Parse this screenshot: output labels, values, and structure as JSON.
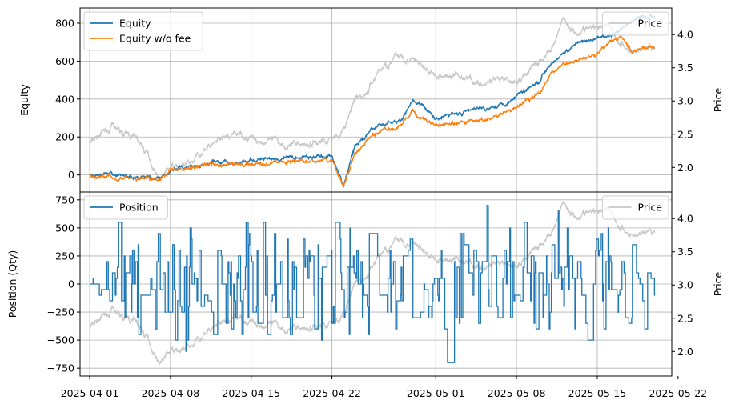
{
  "chart_data": [
    {
      "type": "line",
      "panel": "equity",
      "xlabel": "",
      "ylabel": "Equity",
      "ylabel_right": "Price",
      "ylim": [
        -90,
        880
      ],
      "ylim_right": [
        1.63,
        4.4
      ],
      "yticks": [
        0,
        200,
        400,
        600,
        800
      ],
      "yticks_right": [
        2.0,
        2.5,
        3.0,
        3.5,
        4.0
      ],
      "ytick_labels": [
        "0",
        "200",
        "400",
        "600",
        "800"
      ],
      "ytick_labels_right": [
        "2.0",
        "2.5",
        "3.0",
        "3.5",
        "4.0"
      ],
      "grid": true,
      "legend_left": "upper-left",
      "legend_right": "upper-right",
      "series": [
        {
          "name": "Equity",
          "axis": "left",
          "color": "#1f77b4",
          "x": [
            "2025-04-01",
            "2025-04-03",
            "2025-04-05",
            "2025-04-07",
            "2025-04-08",
            "2025-04-10",
            "2025-04-12",
            "2025-04-14",
            "2025-04-16",
            "2025-04-18",
            "2025-04-20",
            "2025-04-22",
            "2025-04-23",
            "2025-04-24",
            "2025-04-26",
            "2025-04-28",
            "2025-04-29",
            "2025-05-01",
            "2025-05-03",
            "2025-05-05",
            "2025-05-07",
            "2025-05-08",
            "2025-05-10",
            "2025-05-11",
            "2025-05-13",
            "2025-05-15",
            "2025-05-16",
            "2025-05-17",
            "2025-05-18",
            "2025-05-19"
          ],
          "values": [
            0,
            -5,
            -10,
            -15,
            30,
            50,
            70,
            60,
            80,
            90,
            95,
            100,
            -60,
            150,
            260,
            290,
            400,
            300,
            330,
            350,
            380,
            420,
            500,
            600,
            680,
            720,
            730,
            760,
            810,
            840
          ]
        },
        {
          "name": "Equity w/o fee",
          "axis": "left",
          "color": "#ff7f0e",
          "x": [
            "2025-04-01",
            "2025-04-03",
            "2025-04-05",
            "2025-04-07",
            "2025-04-08",
            "2025-04-10",
            "2025-04-12",
            "2025-04-14",
            "2025-04-16",
            "2025-04-18",
            "2025-04-20",
            "2025-04-22",
            "2025-04-23",
            "2025-04-24",
            "2025-04-26",
            "2025-04-28",
            "2025-04-29",
            "2025-05-01",
            "2025-05-03",
            "2025-05-05",
            "2025-05-07",
            "2025-05-08",
            "2025-05-10",
            "2025-05-11",
            "2025-05-13",
            "2025-05-15",
            "2025-05-16",
            "2025-05-17",
            "2025-05-18",
            "2025-05-19"
          ],
          "values": [
            0,
            -10,
            -20,
            -25,
            20,
            40,
            60,
            50,
            65,
            70,
            70,
            75,
            -60,
            110,
            230,
            260,
            330,
            260,
            270,
            290,
            320,
            360,
            430,
            540,
            600,
            650,
            700,
            740,
            640,
            670
          ]
        },
        {
          "name": "Price",
          "axis": "right",
          "color": "#c8c8c8",
          "x": [
            "2025-04-01",
            "2025-04-02",
            "2025-04-03",
            "2025-04-04",
            "2025-04-05",
            "2025-04-06",
            "2025-04-07",
            "2025-04-08",
            "2025-04-09",
            "2025-04-10",
            "2025-04-11",
            "2025-04-12",
            "2025-04-13",
            "2025-04-14",
            "2025-04-16",
            "2025-04-18",
            "2025-04-20",
            "2025-04-21",
            "2025-04-22",
            "2025-04-23",
            "2025-04-24",
            "2025-04-25",
            "2025-04-26",
            "2025-04-28",
            "2025-04-30",
            "2025-05-01",
            "2025-05-03",
            "2025-05-05",
            "2025-05-07",
            "2025-05-08",
            "2025-05-09",
            "2025-05-11",
            "2025-05-12",
            "2025-05-13",
            "2025-05-15",
            "2025-05-16",
            "2025-05-17",
            "2025-05-18",
            "2025-05-19"
          ],
          "values": [
            2.35,
            2.5,
            2.6,
            2.5,
            2.45,
            2.2,
            1.85,
            2.0,
            2.0,
            2.1,
            2.3,
            2.35,
            2.45,
            2.5,
            2.4,
            2.35,
            2.35,
            2.4,
            2.45,
            2.55,
            3.0,
            3.1,
            3.45,
            3.7,
            3.5,
            3.35,
            3.4,
            3.25,
            3.3,
            3.3,
            3.45,
            3.75,
            4.25,
            4.05,
            4.1,
            4.2,
            3.85,
            3.75,
            3.8
          ]
        }
      ]
    },
    {
      "type": "line",
      "panel": "position",
      "xlabel": "",
      "ylabel": "Position (Qty)",
      "ylabel_right": "Price",
      "ylim": [
        -820,
        820
      ],
      "ylim_right": [
        1.63,
        4.4
      ],
      "yticks": [
        -750,
        -500,
        -250,
        0,
        250,
        500,
        750
      ],
      "yticks_right": [
        2.0,
        2.5,
        3.0,
        3.5,
        4.0
      ],
      "ytick_labels": [
        "−750",
        "−500",
        "−250",
        "0",
        "250",
        "500",
        "750"
      ],
      "ytick_labels_right": [
        "2.0",
        "2.5",
        "3.0",
        "3.5",
        "4.0"
      ],
      "x_range": [
        "2025-04-01",
        "2025-05-19"
      ],
      "xticks": [
        "2025-04-01",
        "2025-04-08",
        "2025-04-15",
        "2025-04-22",
        "2025-05-01",
        "2025-05-08",
        "2025-05-15",
        "2025-05-22"
      ],
      "grid": true,
      "legend_left": "upper-left",
      "legend_right": "upper-right",
      "series": [
        {
          "name": "Position",
          "axis": "left",
          "color": "#1f77b4",
          "range": [
            -750,
            750
          ]
        },
        {
          "name": "Price",
          "axis": "right",
          "color": "#c8c8c8",
          "ref": "same as upper panel"
        }
      ]
    }
  ]
}
